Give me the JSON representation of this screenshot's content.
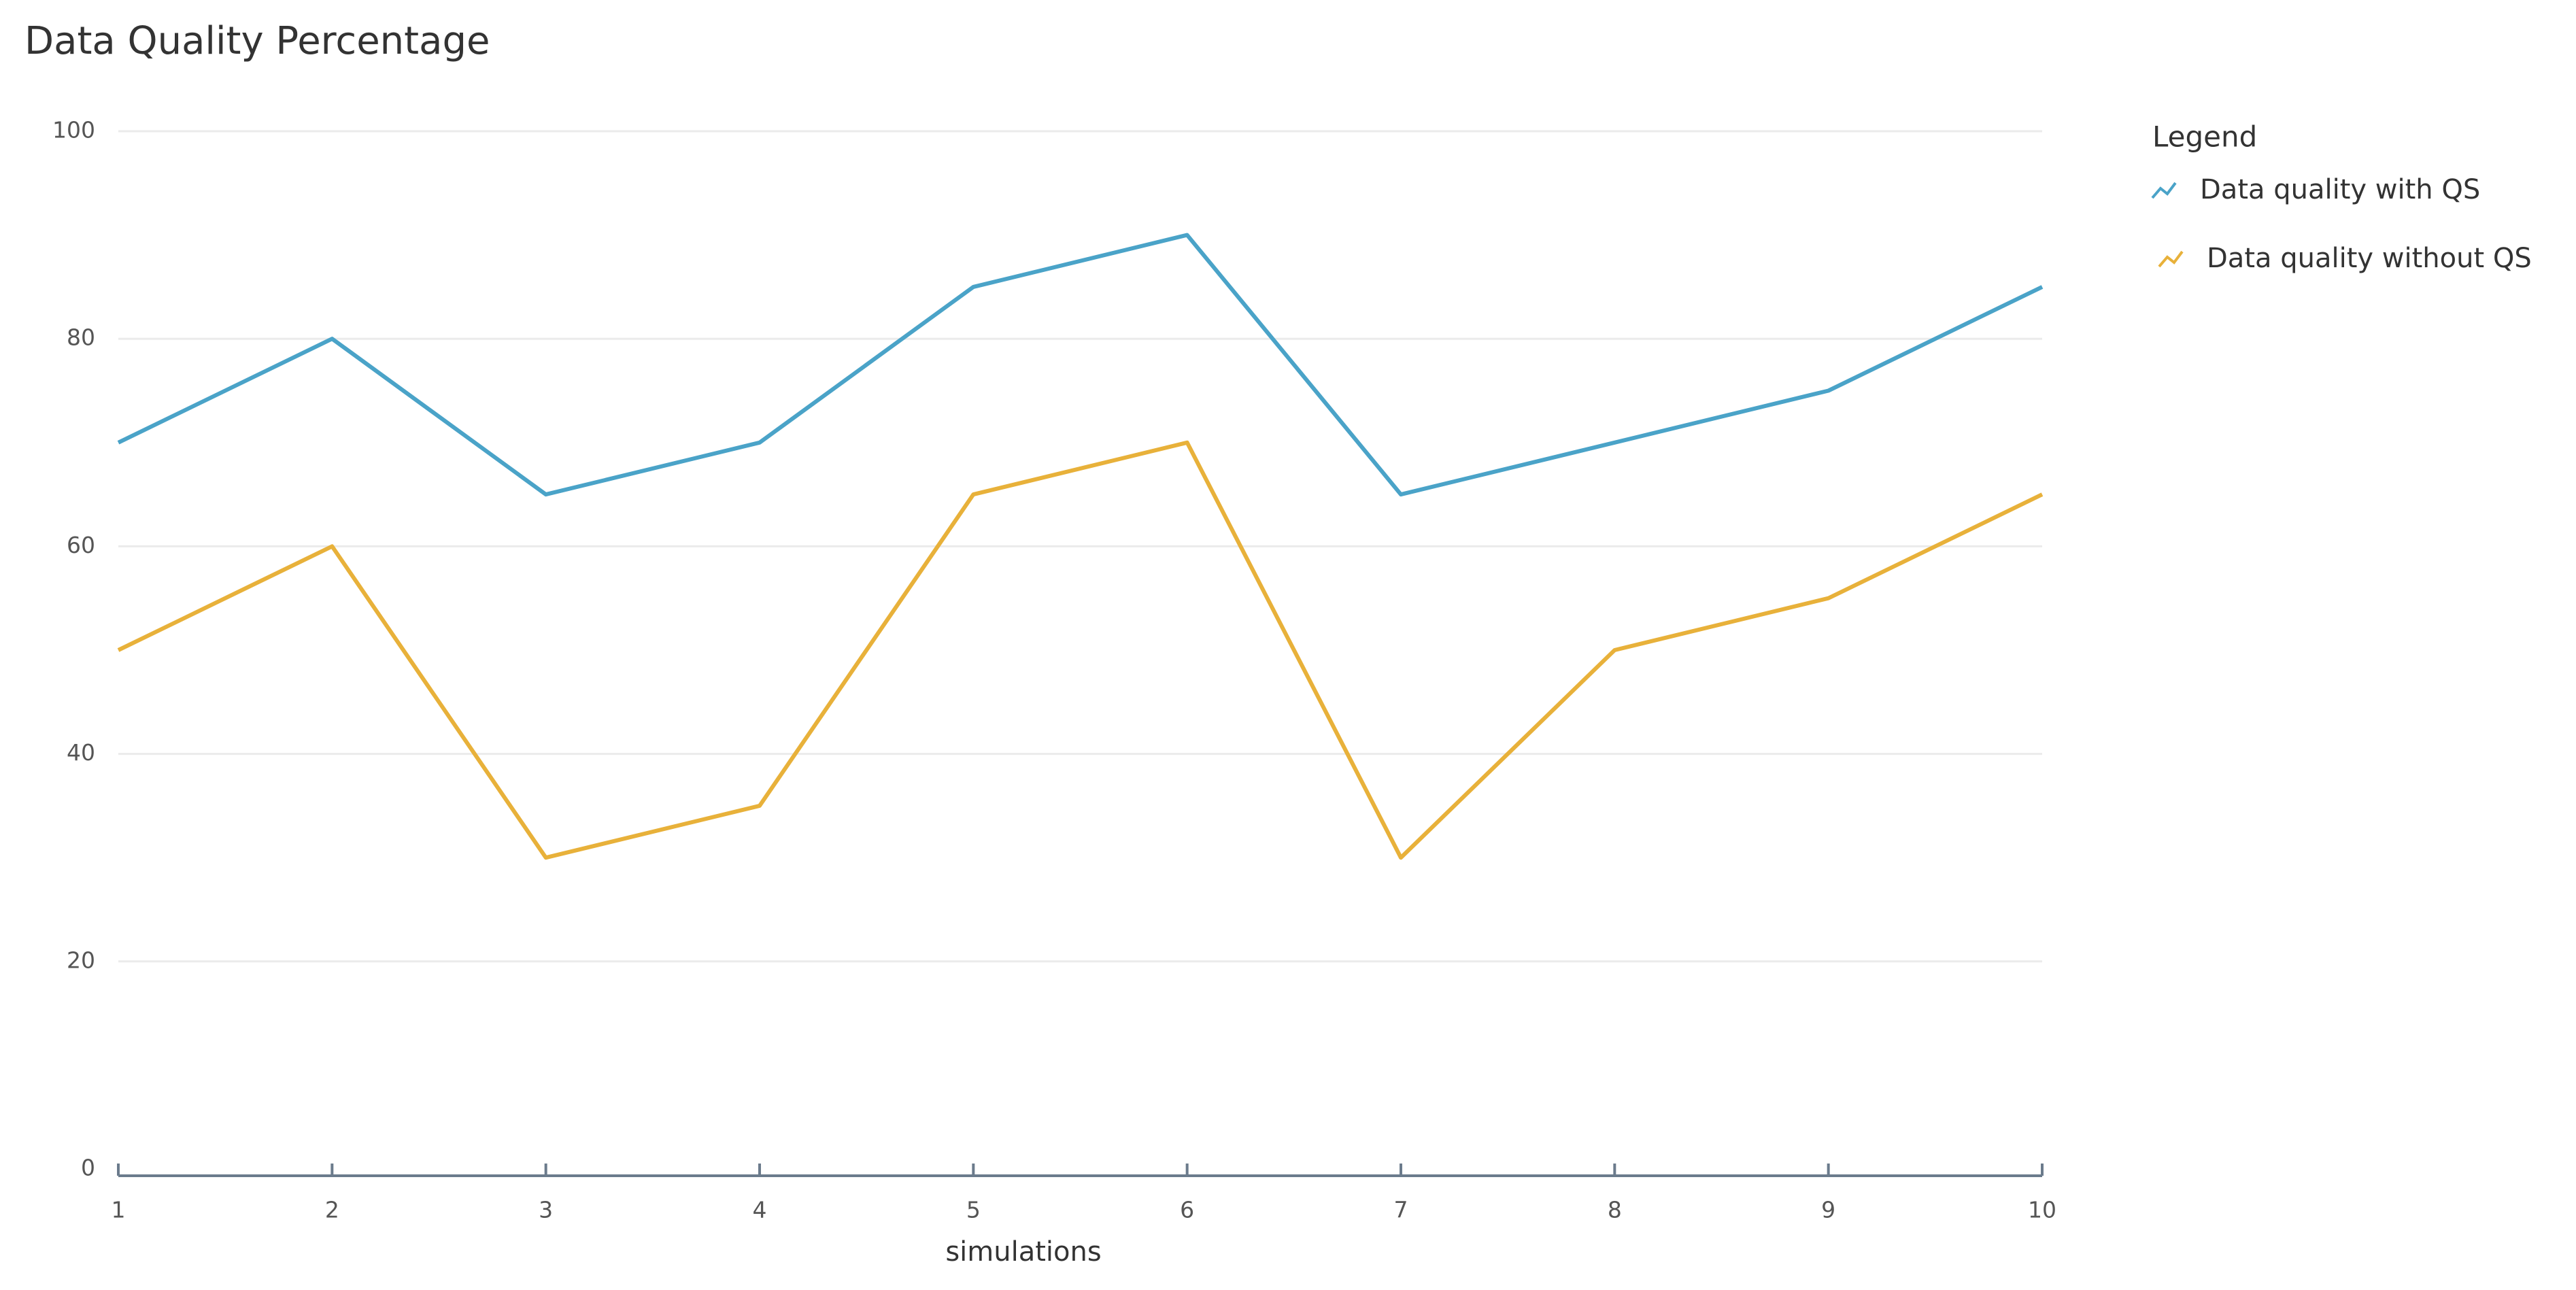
{
  "chart_data": {
    "type": "line",
    "title": "Data Quality Percentage",
    "x_label": "simulations",
    "legend_title": "Legend",
    "legend_position": "right",
    "grid": true,
    "x": [
      1,
      2,
      3,
      4,
      5,
      6,
      7,
      8,
      9,
      10
    ],
    "series": [
      {
        "name": "Data quality with QS",
        "color": "#4aa3c8",
        "values": [
          70,
          80,
          65,
          70,
          85,
          90,
          65,
          70,
          75,
          85
        ]
      },
      {
        "name": "Data quality without QS",
        "color": "#e8b13a",
        "values": [
          50,
          60,
          30,
          35,
          65,
          70,
          30,
          50,
          55,
          65
        ]
      }
    ],
    "xlim": [
      1,
      10
    ],
    "xticks": [
      1,
      2,
      3,
      4,
      5,
      6,
      7,
      8,
      9,
      10
    ],
    "ylim": [
      0,
      100
    ],
    "yticks": [
      0,
      20,
      40,
      60,
      80,
      100
    ]
  }
}
